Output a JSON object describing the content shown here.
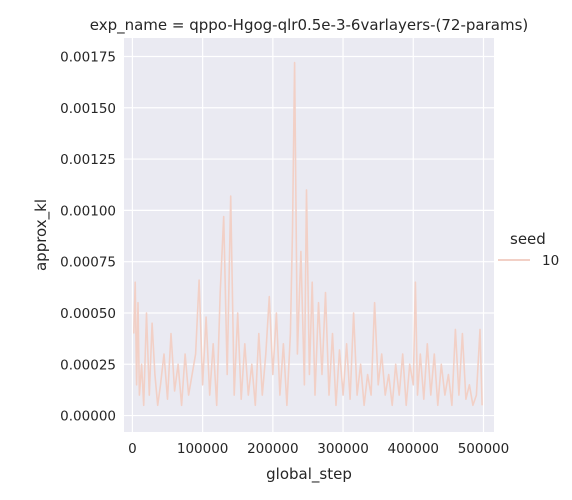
{
  "chart_data": {
    "type": "line",
    "title": "exp_name = qppo-Hgog-qlr0.5e-3-6varlayers-(72-params)",
    "xlabel": "global_step",
    "ylabel": "approx_kl",
    "xlim": [
      -12000,
      515000
    ],
    "ylim": [
      -8e-05,
      0.00184
    ],
    "xticks": [
      0,
      100000,
      200000,
      300000,
      400000,
      500000
    ],
    "xtick_labels": [
      "0",
      "100000",
      "200000",
      "300000",
      "400000",
      "500000"
    ],
    "yticks": [
      0.0,
      0.00025,
      0.0005,
      0.00075,
      0.001,
      0.00125,
      0.0015,
      0.00175
    ],
    "ytick_labels": [
      "0.00000",
      "0.00025",
      "0.00050",
      "0.00075",
      "0.00100",
      "0.00125",
      "0.00150",
      "0.00175"
    ],
    "grid": true,
    "legend": {
      "title": "seed",
      "placement": "right"
    },
    "series": [
      {
        "name": "10",
        "color": "#f2d0c6",
        "x": [
          2000,
          4000,
          6000,
          8000,
          10000,
          13000,
          16000,
          20000,
          24000,
          28000,
          32000,
          36000,
          40000,
          45000,
          50000,
          55000,
          60000,
          65000,
          70000,
          75000,
          80000,
          85000,
          90000,
          95000,
          100000,
          105000,
          110000,
          115000,
          120000,
          125000,
          130000,
          135000,
          140000,
          145000,
          150000,
          155000,
          160000,
          165000,
          170000,
          175000,
          180000,
          185000,
          190000,
          195000,
          200000,
          205000,
          210000,
          215000,
          220000,
          225000,
          228000,
          231000,
          235000,
          240000,
          245000,
          248000,
          252000,
          256000,
          260000,
          265000,
          270000,
          275000,
          280000,
          285000,
          290000,
          295000,
          300000,
          305000,
          310000,
          315000,
          320000,
          325000,
          330000,
          335000,
          340000,
          345000,
          350000,
          355000,
          360000,
          365000,
          370000,
          375000,
          380000,
          385000,
          390000,
          395000,
          400000,
          403000,
          406000,
          410000,
          415000,
          420000,
          425000,
          430000,
          435000,
          440000,
          445000,
          450000,
          455000,
          460000,
          465000,
          470000,
          475000,
          480000,
          485000,
          490000,
          495000,
          498000
        ],
        "values": [
          0.0004,
          0.00065,
          0.00015,
          0.00055,
          0.0001,
          0.00025,
          5e-05,
          0.0005,
          0.0001,
          0.00045,
          0.0002,
          5e-05,
          0.00015,
          0.0003,
          8e-05,
          0.0004,
          0.00012,
          0.00025,
          5e-05,
          0.0003,
          0.0001,
          0.0002,
          0.0003,
          0.00066,
          0.00015,
          0.00048,
          0.0001,
          0.00035,
          5e-05,
          0.0006,
          0.00097,
          0.0002,
          0.00107,
          0.0001,
          0.0005,
          8e-05,
          0.00035,
          0.0001,
          0.00025,
          5e-05,
          0.0004,
          0.0001,
          0.0003,
          0.00058,
          0.0002,
          0.0005,
          0.0001,
          0.00035,
          5e-05,
          0.0004,
          0.0009,
          0.00172,
          0.0003,
          0.0008,
          0.00015,
          0.0011,
          0.0002,
          0.00065,
          0.0001,
          0.00055,
          0.0002,
          0.0006,
          0.0001,
          0.0004,
          5e-05,
          0.00032,
          0.0001,
          0.00035,
          8e-05,
          0.0005,
          0.0001,
          0.00025,
          5e-05,
          0.0002,
          0.0001,
          0.00055,
          0.00015,
          0.0003,
          0.0001,
          0.0002,
          5e-05,
          0.00025,
          0.0001,
          0.0003,
          5e-05,
          0.00025,
          0.00015,
          0.00065,
          0.0001,
          0.0003,
          8e-05,
          0.00035,
          0.0001,
          0.0003,
          5e-05,
          0.00025,
          0.0001,
          0.0002,
          5e-05,
          0.00042,
          0.0001,
          0.0004,
          8e-05,
          0.00015,
          5e-05,
          0.0001,
          0.00042,
          5e-05
        ]
      }
    ]
  }
}
